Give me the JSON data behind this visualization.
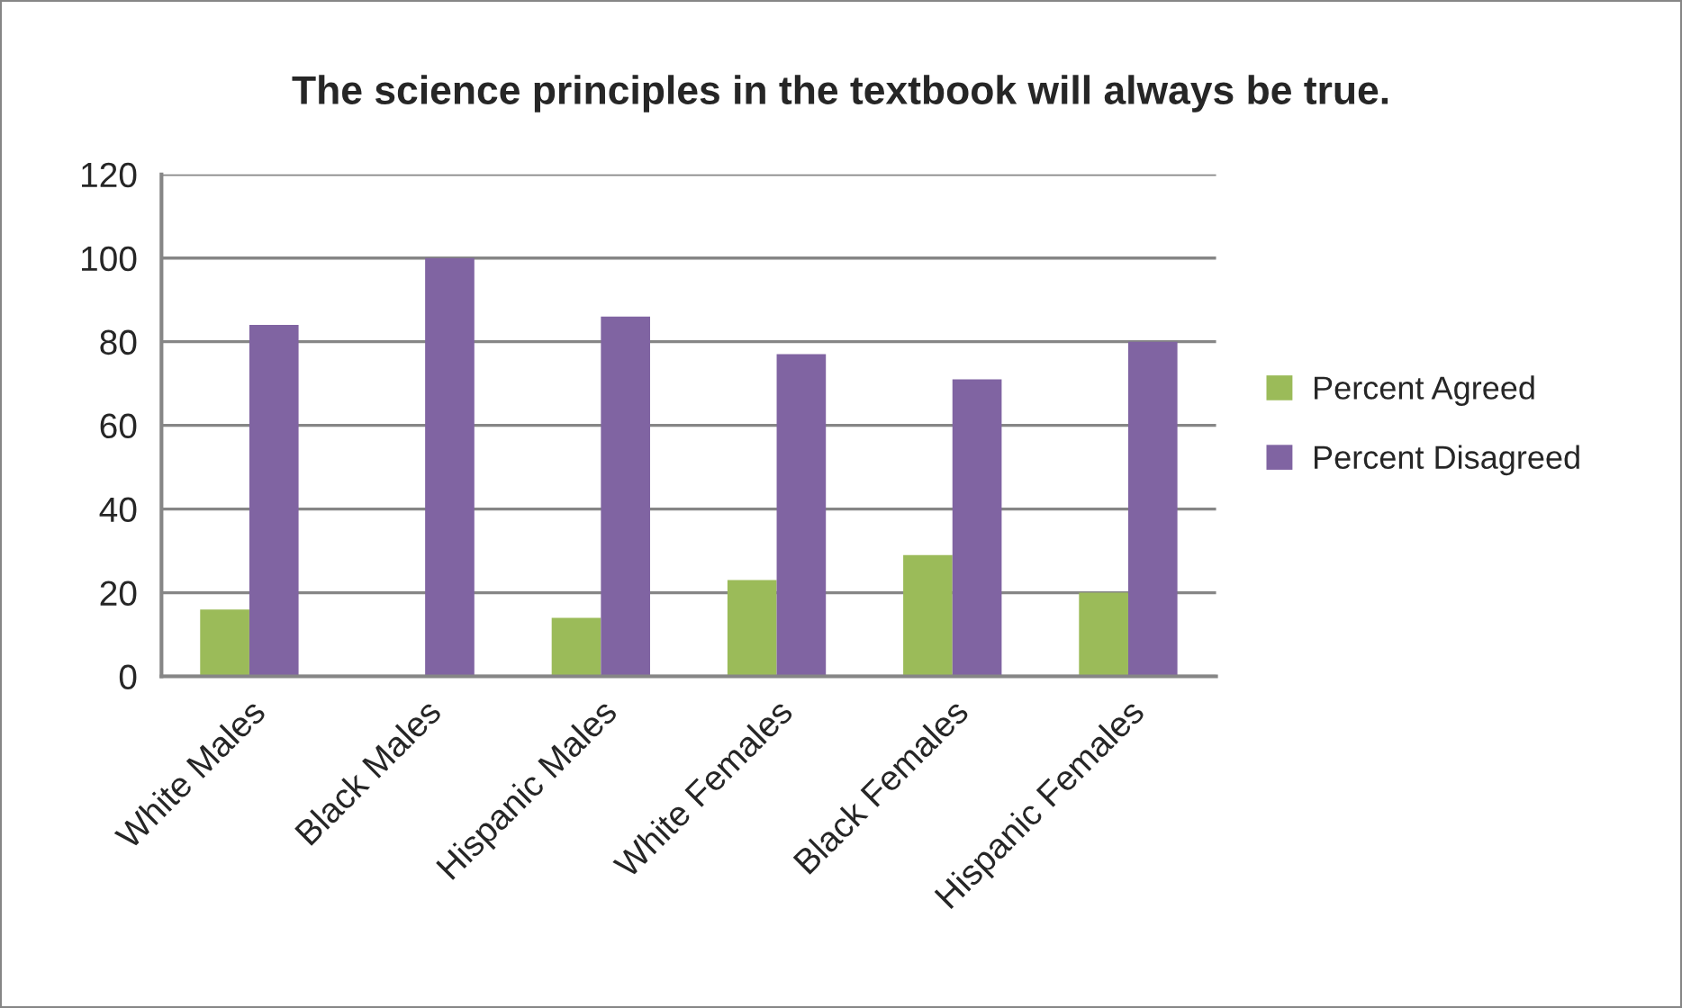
{
  "chart_data": {
    "type": "bar",
    "title": "The science principles in the textbook will always be true.",
    "categories": [
      "White Males",
      "Black Males",
      "Hispanic Males",
      "White Females",
      "Black Females",
      "Hispanic Females"
    ],
    "series": [
      {
        "name": "Percent Agreed",
        "color": "#9bbb59",
        "values": [
          16,
          0,
          14,
          23,
          29,
          20
        ]
      },
      {
        "name": "Percent Disagreed",
        "color": "#8064a2",
        "values": [
          84,
          100,
          86,
          77,
          71,
          80
        ]
      }
    ],
    "ylim": [
      0,
      120
    ],
    "yticks": [
      0,
      20,
      40,
      60,
      80,
      100,
      120
    ],
    "grid": "y",
    "legend": "right"
  }
}
